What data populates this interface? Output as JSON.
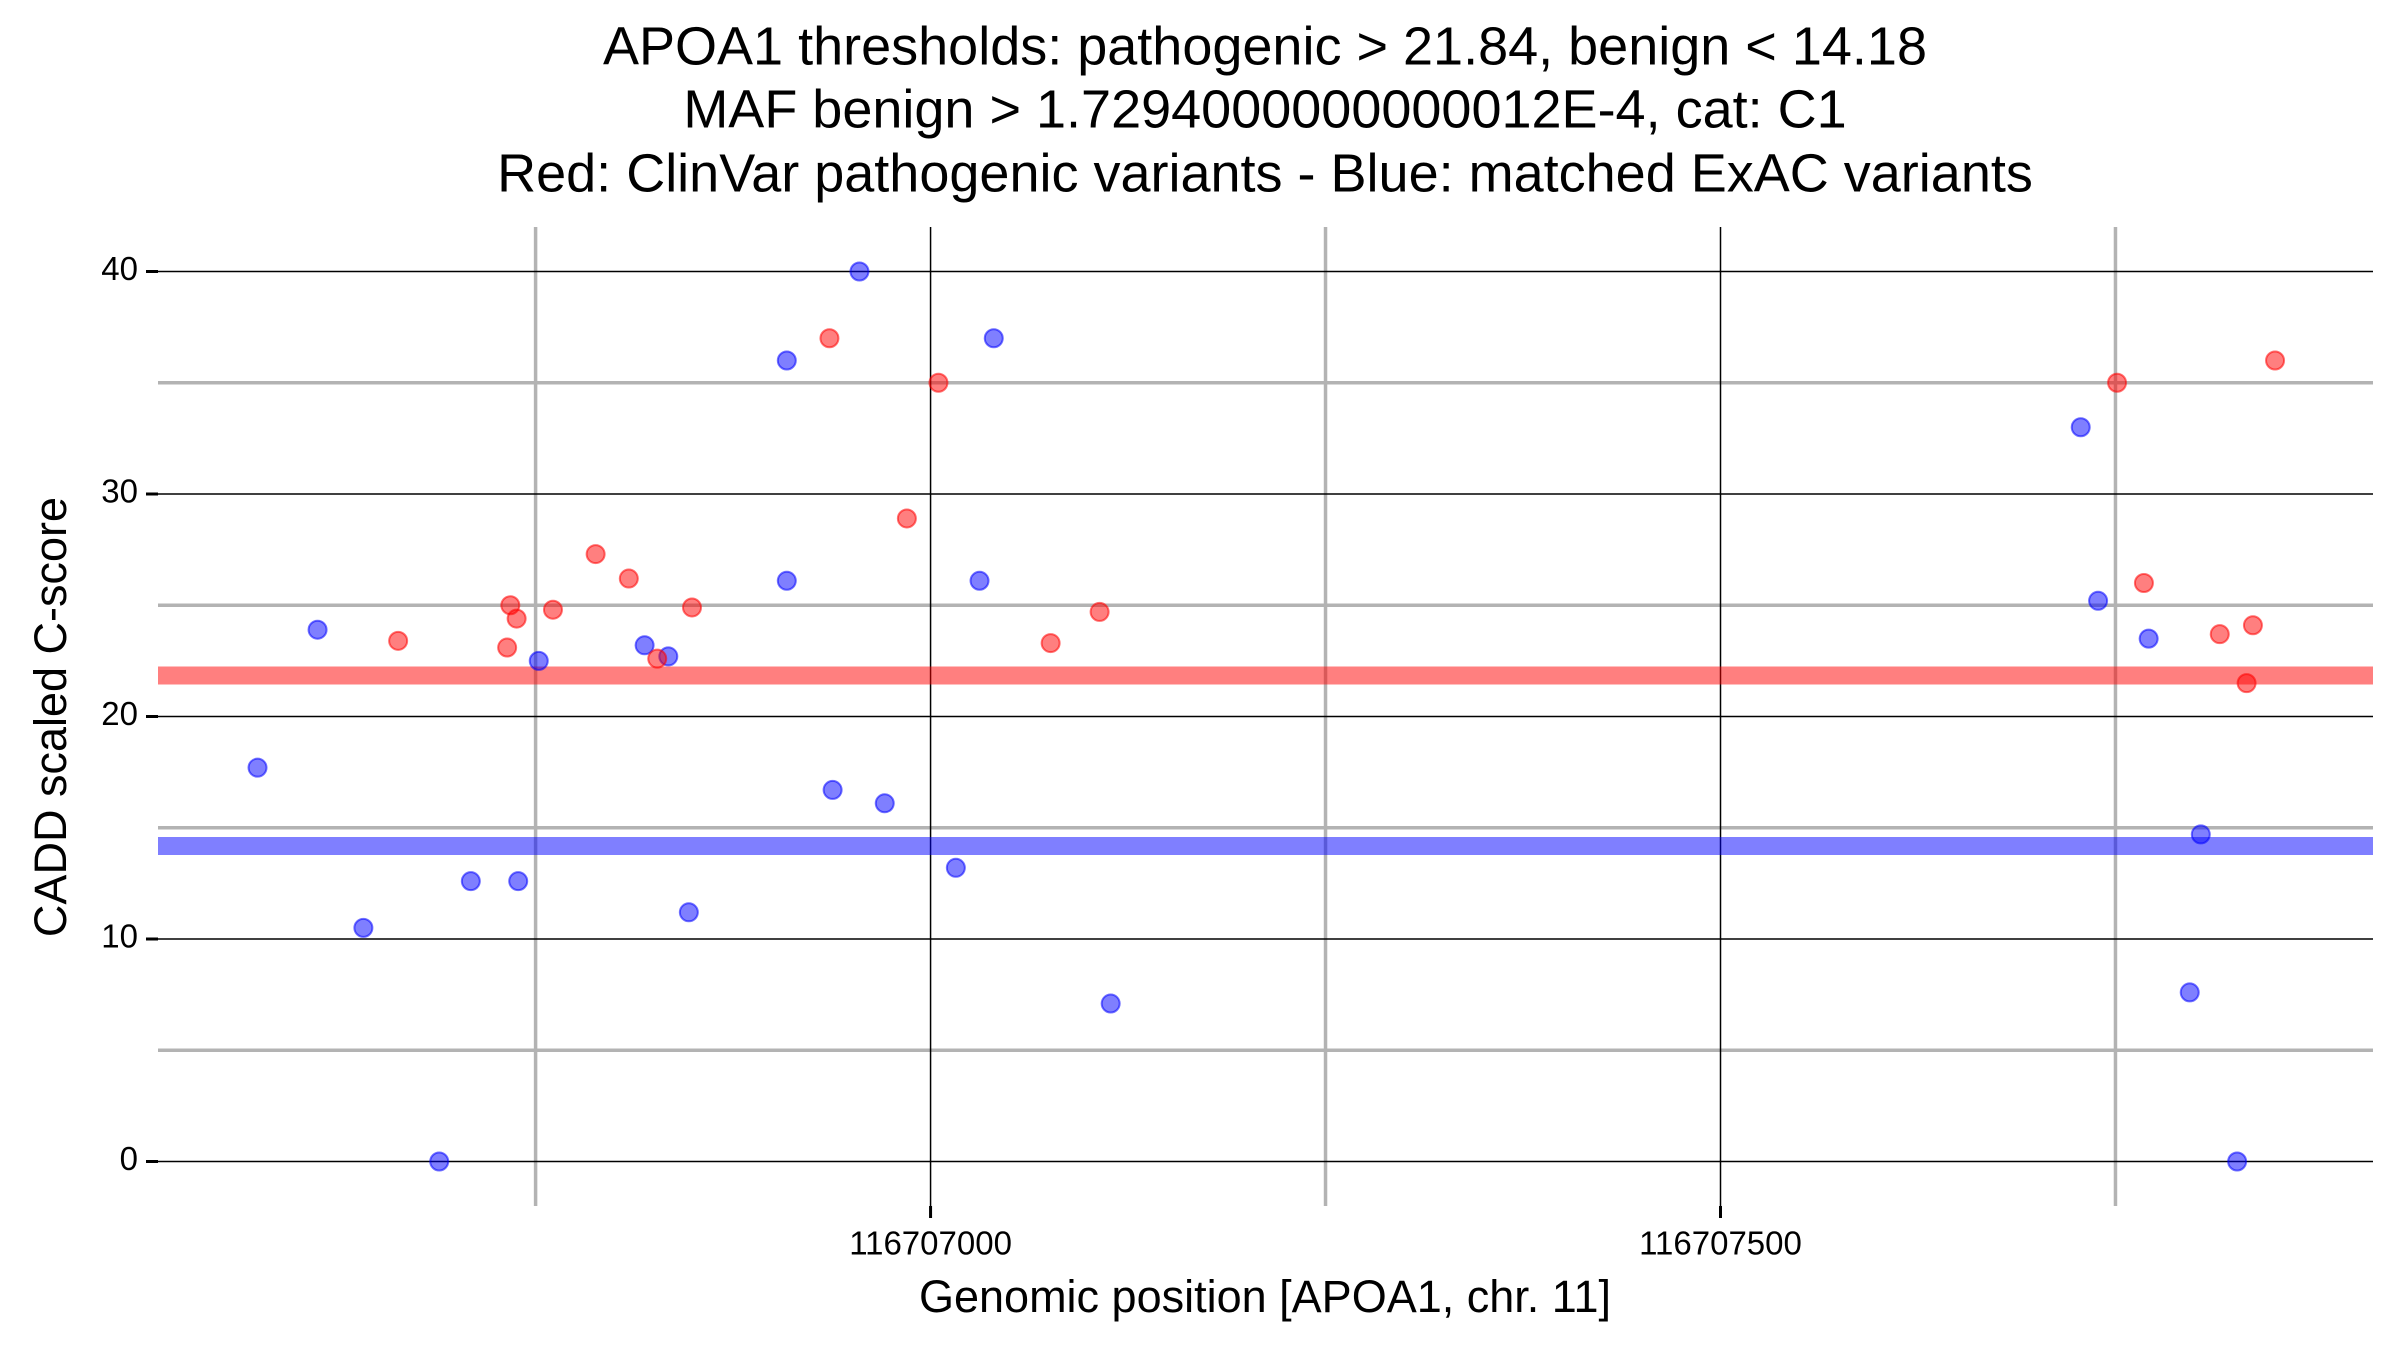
{
  "chart_data": {
    "type": "scatter",
    "title": [
      "APOA1 thresholds: pathogenic > 21.84, benign < 14.18",
      "MAF benign > 1.7294000000000012E-4, cat: C1",
      "Red: ClinVar pathogenic variants - Blue: matched ExAC variants"
    ],
    "x_label": "Genomic position [APOA1, chr. 11]",
    "y_label": "CADD scaled C-score",
    "xlim": [
      116706511,
      116707913
    ],
    "xticks": [
      116707000,
      116707500
    ],
    "x_minor_grid": [
      116706750,
      116707250,
      116707750
    ],
    "ylim": [
      -2,
      42
    ],
    "yticks": [
      0,
      10,
      20,
      30,
      40
    ],
    "y_minor_grid": [
      5,
      15,
      25,
      35
    ],
    "grid": true,
    "thresholds": [
      {
        "value": 21.84,
        "color": "#ff0000"
      },
      {
        "value": 14.18,
        "color": "#0000ff"
      }
    ],
    "series": [
      {
        "color": "#0000ff",
        "x": [
          116706574,
          116706612,
          116706641,
          116706689,
          116706709,
          116706739,
          116706752,
          116706819,
          116706834,
          116706847,
          116706909,
          116706909,
          116706938,
          116706955,
          116706971,
          116707016,
          116707031,
          116707040,
          116707114,
          116707728,
          116707739,
          116707771,
          116707797,
          116707804,
          116707827
        ],
        "values": [
          17.7,
          23.9,
          10.5,
          0,
          12.6,
          12.6,
          22.5,
          23.2,
          22.7,
          11.2,
          26.1,
          36.0,
          16.7,
          40,
          16.1,
          13.2,
          26.1,
          37.0,
          7.1,
          33.0,
          25.2,
          23.5,
          7.6,
          14.7,
          0
        ]
      },
      {
        "color": "#ff0000",
        "x": [
          116706663,
          116706732,
          116706734,
          116706738,
          116706761,
          116706788,
          116706809,
          116706827,
          116706849,
          116706936,
          116706985,
          116707005,
          116707076,
          116707107,
          116707751,
          116707768,
          116707816,
          116707833,
          116707837,
          116707851
        ],
        "values": [
          23.4,
          23.1,
          25.0,
          24.4,
          24.8,
          27.3,
          26.2,
          22.6,
          24.9,
          37.0,
          28.9,
          35.0,
          23.3,
          24.7,
          35.0,
          26.0,
          23.7,
          21.5,
          24.1,
          36.0
        ]
      }
    ]
  }
}
